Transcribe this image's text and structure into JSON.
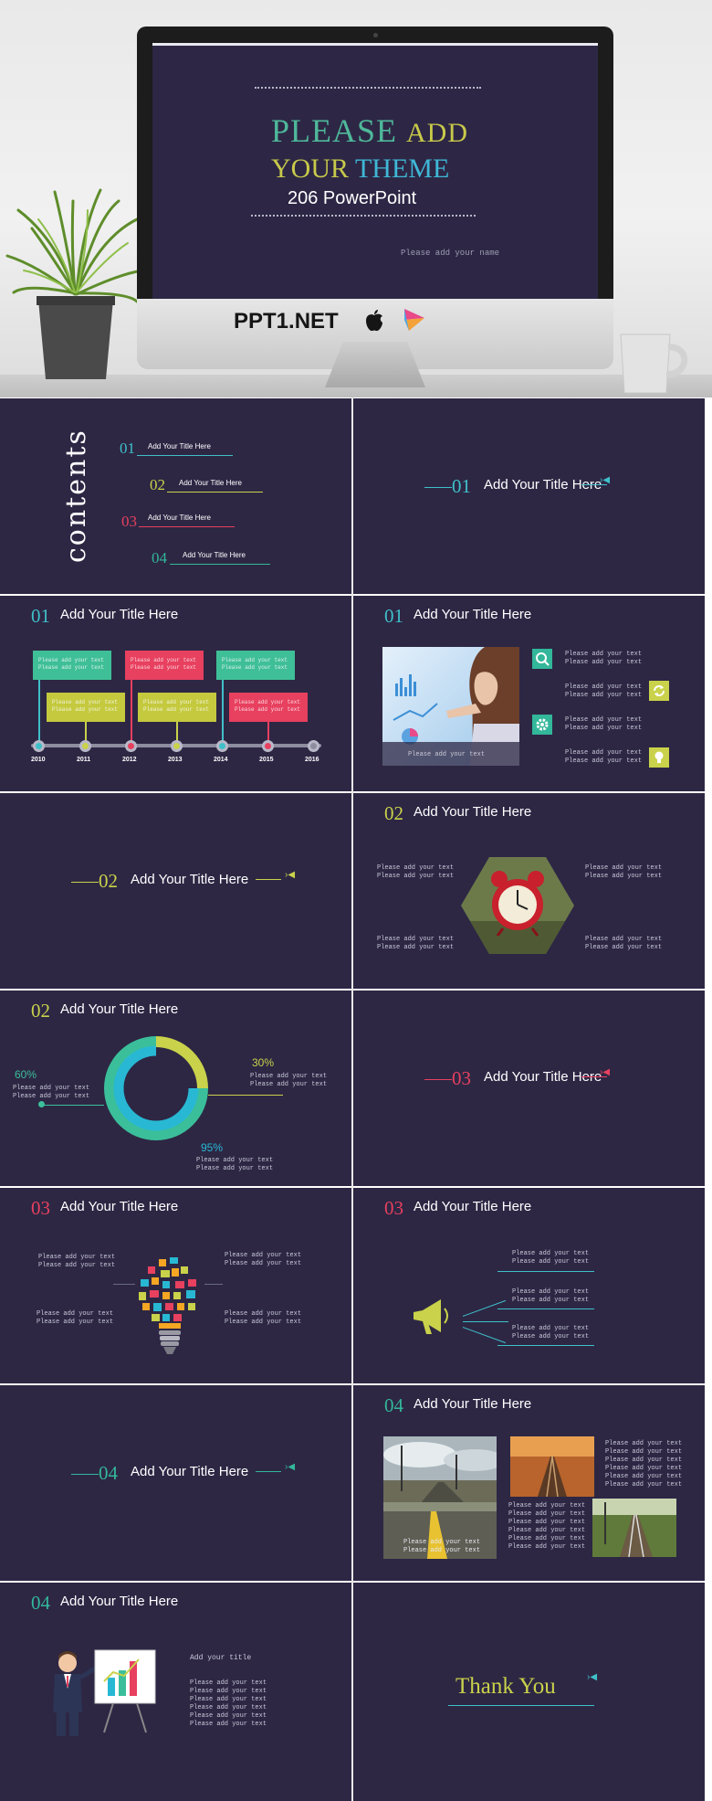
{
  "hero": {
    "title_please": "PLEASE",
    "title_add": "ADD",
    "title_your": "YOUR",
    "title_theme": "THEME",
    "subtitle": "206  PowerPoint",
    "name": "Please add your name",
    "brand": "PPT1.NET"
  },
  "contents": {
    "word": "contents",
    "items": [
      {
        "num": "01",
        "label": "Add Your Title Here"
      },
      {
        "num": "02",
        "label": "Add Your Title Here"
      },
      {
        "num": "03",
        "label": "Add Your Title Here"
      },
      {
        "num": "04",
        "label": "Add Your Title Here"
      }
    ]
  },
  "section_title": "Add Your Title Here",
  "placeholder": "Please add your text",
  "placeholder_short": "Please add your tex",
  "nums": {
    "n1": "01",
    "n2": "02",
    "n3": "03",
    "n4": "04"
  },
  "timeline": {
    "years": [
      "2010",
      "2011",
      "2012",
      "2013",
      "2014",
      "2015",
      "2016"
    ],
    "box_text_a": "Please add your text",
    "box_text_b": "Please add your text"
  },
  "donut": {
    "p1": "30%",
    "p2": "60%",
    "p3": "95%"
  },
  "last": {
    "add_title": "Add your title",
    "thanks": "Thank You"
  },
  "colors": {
    "bg": "#2d2744",
    "teal": "#3fc0c9",
    "lime": "#c9d24a",
    "red": "#e8405f",
    "green": "#33b79a"
  }
}
